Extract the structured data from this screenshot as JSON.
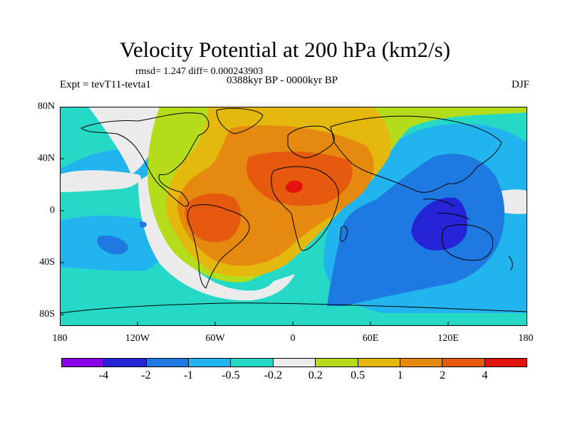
{
  "title": "Velocity Potential at 200 hPa (km2/s)",
  "stats": "rmsd= 1.247 diff= 0.000243903",
  "period": "0388kyr BP - 0000kyr BP",
  "experiment": "Expt = tevT11-tevta1",
  "season": "DJF",
  "latitude_labels": [
    "80N",
    "40N",
    "0",
    "40S",
    "80S"
  ],
  "longitude_labels": [
    "180",
    "120W",
    "60W",
    "0",
    "60E",
    "120E",
    "180"
  ],
  "colorbar": {
    "colors": [
      "#8a00e6",
      "#2424d6",
      "#1e7ae0",
      "#21b4ee",
      "#26d9c6",
      "#ececec",
      "#b5dc1a",
      "#e5b80e",
      "#e58a0e",
      "#e55a0e",
      "#e3130e"
    ],
    "labels": [
      "-4",
      "-2",
      "-1",
      "-0.5",
      "-0.2",
      "0.2",
      "0.5",
      "1",
      "2",
      "4"
    ]
  }
}
